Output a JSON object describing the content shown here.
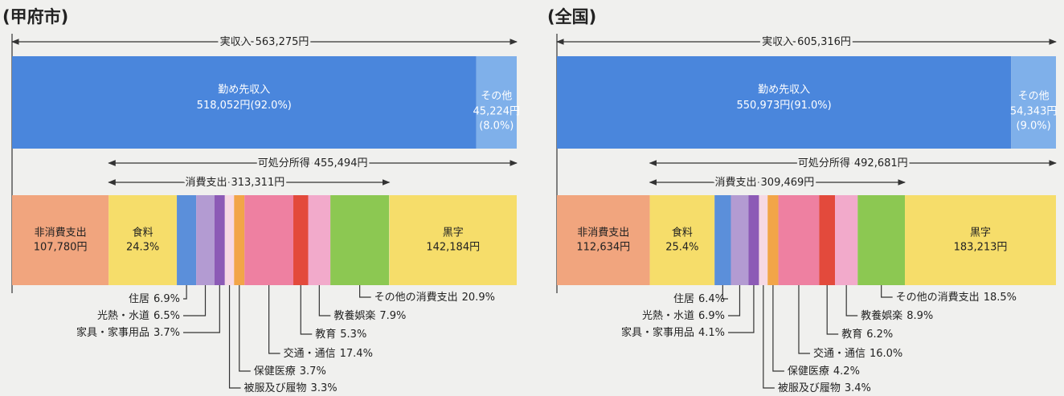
{
  "panels": [
    {
      "title": "(甲府市)",
      "income": {
        "name": "実収入",
        "value": 563275,
        "value_label": "563,275円"
      },
      "income_parts": [
        {
          "name": "勤め先収入",
          "value": 518052,
          "value_label": "518,052円",
          "share": 92.0,
          "share_label": "(92.0%)",
          "color": "#4a86dc"
        },
        {
          "name": "その他",
          "value": 45224,
          "value_label": "45,224円",
          "share": 8.0,
          "share_label": "(8.0%)",
          "color": "#7fb0ea"
        }
      ],
      "disposable": {
        "name": "可処分所得",
        "value": 455494,
        "value_label": "455,494円"
      },
      "consumption": {
        "name": "消費支出",
        "value": 313311,
        "value_label": "313,311円"
      },
      "non_consumption": {
        "name": "非消費支出",
        "value": 107780,
        "value_label": "107,780円",
        "color": "#f1a57e"
      },
      "surplus": {
        "name": "黒字",
        "value": 142184,
        "value_label": "142,184円",
        "color": "#f6dd6a"
      },
      "items": [
        {
          "name": "食料",
          "share": 24.3,
          "share_label": "24.3%",
          "color": "#f6dd6a"
        },
        {
          "name": "住居",
          "share": 6.9,
          "share_label": "6.9%",
          "color": "#5b8fda"
        },
        {
          "name": "光熱・水道",
          "share": 6.5,
          "share_label": "6.5%",
          "color": "#b39bd2"
        },
        {
          "name": "家具・家事用品",
          "share": 3.7,
          "share_label": "3.7%",
          "color": "#8c5ab6"
        },
        {
          "name": "被服及び履物",
          "share": 3.3,
          "share_label": "3.3%",
          "color": "#f6d9e4"
        },
        {
          "name": "保健医療",
          "share": 3.7,
          "share_label": "3.7%",
          "color": "#f2a548"
        },
        {
          "name": "交通・通信",
          "share": 17.4,
          "share_label": "17.4%",
          "color": "#ee80a1"
        },
        {
          "name": "教育",
          "share": 5.3,
          "share_label": "5.3%",
          "color": "#e34a3c"
        },
        {
          "name": "教養娯楽",
          "share": 7.9,
          "share_label": "7.9%",
          "color": "#f2aacb"
        },
        {
          "name": "その他の消費支出",
          "share": 20.9,
          "share_label": "20.9%",
          "color": "#8cc852"
        }
      ]
    },
    {
      "title": "(全国)",
      "income": {
        "name": "実収入",
        "value": 605316,
        "value_label": "605,316円"
      },
      "income_parts": [
        {
          "name": "勤め先収入",
          "value": 550973,
          "value_label": "550,973円",
          "share": 91.0,
          "share_label": "(91.0%)",
          "color": "#4a86dc"
        },
        {
          "name": "その他",
          "value": 54343,
          "value_label": "54,343円",
          "share": 9.0,
          "share_label": "(9.0%)",
          "color": "#7fb0ea"
        }
      ],
      "disposable": {
        "name": "可処分所得",
        "value": 492681,
        "value_label": "492,681円"
      },
      "consumption": {
        "name": "消費支出",
        "value": 309469,
        "value_label": "309,469円"
      },
      "non_consumption": {
        "name": "非消費支出",
        "value": 112634,
        "value_label": "112,634円",
        "color": "#f1a57e"
      },
      "surplus": {
        "name": "黒字",
        "value": 183213,
        "value_label": "183,213円",
        "color": "#f6dd6a"
      },
      "items": [
        {
          "name": "食料",
          "share": 25.4,
          "share_label": "25.4%",
          "color": "#f6dd6a"
        },
        {
          "name": "住居",
          "share": 6.4,
          "share_label": "6.4%",
          "color": "#5b8fda"
        },
        {
          "name": "光熱・水道",
          "share": 6.9,
          "share_label": "6.9%",
          "color": "#b39bd2"
        },
        {
          "name": "家具・家事用品",
          "share": 4.1,
          "share_label": "4.1%",
          "color": "#8c5ab6"
        },
        {
          "name": "被服及び履物",
          "share": 3.4,
          "share_label": "3.4%",
          "color": "#f6d9e4"
        },
        {
          "name": "保健医療",
          "share": 4.2,
          "share_label": "4.2%",
          "color": "#f2a548"
        },
        {
          "name": "交通・通信",
          "share": 16.0,
          "share_label": "16.0%",
          "color": "#ee80a1"
        },
        {
          "name": "教育",
          "share": 6.2,
          "share_label": "6.2%",
          "color": "#e34a3c"
        },
        {
          "name": "教養娯楽",
          "share": 8.9,
          "share_label": "8.9%",
          "color": "#f2aacb"
        },
        {
          "name": "その他の消費支出",
          "share": 18.5,
          "share_label": "18.5%",
          "color": "#8cc852"
        }
      ]
    }
  ]
}
